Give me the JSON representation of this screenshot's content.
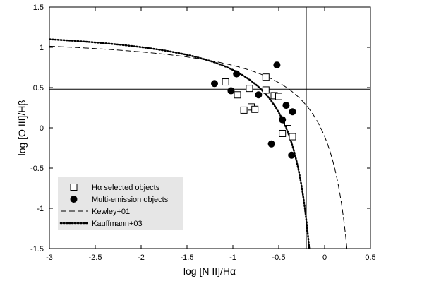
{
  "chart_data": {
    "type": "scatter",
    "xlabel": "log [N II]/Hα",
    "ylabel": "log [O III]/Hβ",
    "xlim": [
      -3,
      0.5
    ],
    "ylim": [
      -1.5,
      1.5
    ],
    "xticks": [
      -3,
      -2.5,
      -2,
      -1.5,
      -1,
      -0.5,
      0,
      0.5
    ],
    "yticks": [
      -1.5,
      -1,
      -0.5,
      0,
      0.5,
      1,
      1.5
    ],
    "grid": false,
    "legend_position": "lower-left",
    "reference_lines": {
      "vertical_x": -0.2,
      "horizontal_y": 0.48
    },
    "series": [
      {
        "name": "Hα selected objects",
        "marker": "open-square",
        "points": [
          [
            -1.08,
            0.57
          ],
          [
            -0.95,
            0.41
          ],
          [
            -0.88,
            0.22
          ],
          [
            -0.82,
            0.49
          ],
          [
            -0.8,
            0.26
          ],
          [
            -0.76,
            0.23
          ],
          [
            -0.64,
            0.63
          ],
          [
            -0.64,
            0.47
          ],
          [
            -0.55,
            0.4
          ],
          [
            -0.5,
            0.39
          ],
          [
            -0.46,
            -0.07
          ],
          [
            -0.4,
            0.07
          ],
          [
            -0.35,
            -0.11
          ]
        ]
      },
      {
        "name": "Multi-emission objects",
        "marker": "filled-circle",
        "points": [
          [
            -1.2,
            0.55
          ],
          [
            -1.02,
            0.46
          ],
          [
            -0.96,
            0.67
          ],
          [
            -0.72,
            0.41
          ],
          [
            -0.52,
            0.78
          ],
          [
            -0.58,
            -0.2
          ],
          [
            -0.46,
            0.1
          ],
          [
            -0.42,
            0.28
          ],
          [
            -0.35,
            0.2
          ],
          [
            -0.36,
            -0.34
          ]
        ]
      },
      {
        "name": "Kewley+01",
        "style": "dashed",
        "curve": "0.61/(x-0.47)+1.19"
      },
      {
        "name": "Kauffmann+03",
        "style": "dotted",
        "curve": "0.61/(x-0.05)+1.3"
      }
    ]
  }
}
